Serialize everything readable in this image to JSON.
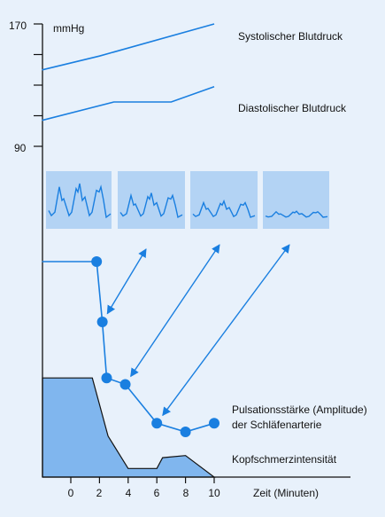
{
  "chart_data": {
    "type": "line",
    "y_unit": "mmHg",
    "y_ticks": [
      "170",
      "90"
    ],
    "x_ticks": [
      "0",
      "2",
      "4",
      "6",
      "8",
      "10"
    ],
    "x_axis_title": "Zeit (Minuten)",
    "series": [
      {
        "name": "Systolischer Blutdruck",
        "points": [
          [
            -2,
            140
          ],
          [
            2,
            149
          ],
          [
            10,
            170
          ]
        ]
      },
      {
        "name": "Diastolischer Blutdruck",
        "points": [
          [
            -2,
            107
          ],
          [
            3,
            119
          ],
          [
            7,
            119
          ],
          [
            10,
            129
          ]
        ]
      },
      {
        "name": "Pulsationsstärke (Amplitude) der Schläfenarterie",
        "marker": "circle",
        "points": [
          [
            -2,
            100
          ],
          [
            1.8,
            100
          ],
          [
            2.2,
            72
          ],
          [
            2.5,
            46
          ],
          [
            3.8,
            43
          ],
          [
            6,
            25
          ],
          [
            8,
            21
          ],
          [
            10,
            25
          ]
        ]
      },
      {
        "name": "Kopfschmerzintensität",
        "type": "area",
        "points": [
          [
            -2,
            46
          ],
          [
            1.5,
            46
          ],
          [
            2.6,
            19
          ],
          [
            4,
            4
          ],
          [
            6,
            4
          ],
          [
            6.4,
            9
          ],
          [
            8,
            10
          ],
          [
            10,
            0
          ]
        ]
      }
    ],
    "pulse_waveform_panels": 4,
    "colors": {
      "line": "#1a7fe0",
      "area": "#80b6ee",
      "panel": "#b3d3f4",
      "background": "#e8f1fb"
    }
  }
}
